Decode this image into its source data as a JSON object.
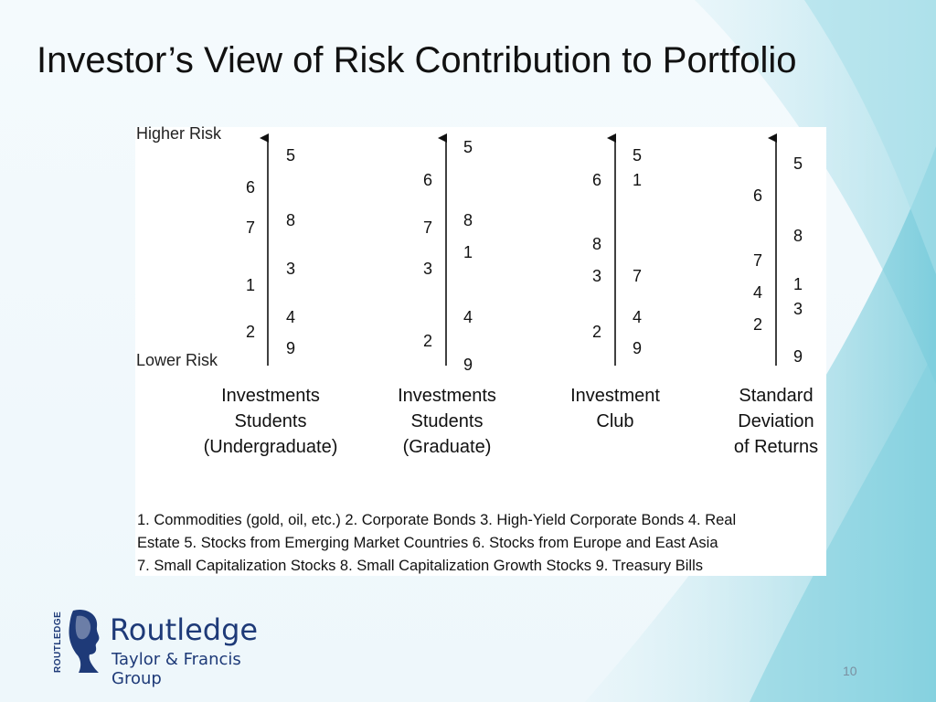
{
  "slide": {
    "title": "Investor’s View of Risk Contribution to Portfolio",
    "page_number": "10"
  },
  "figure": {
    "higher_risk_label": "Higher Risk",
    "lower_risk_label": "Lower Risk",
    "columns": [
      {
        "label_lines": [
          "Investments",
          "Students",
          "(Undergraduate)"
        ],
        "left_numbers": [
          "6",
          "7",
          "1",
          "2"
        ],
        "right_numbers": [
          "5",
          "8",
          "3",
          "4",
          "9"
        ]
      },
      {
        "label_lines": [
          "Investments",
          "Students",
          "(Graduate)"
        ],
        "left_numbers": [
          "6",
          "7",
          "3",
          "2"
        ],
        "right_numbers": [
          "5",
          "8",
          "1",
          "4",
          "9"
        ]
      },
      {
        "label_lines": [
          "Investment",
          "Club"
        ],
        "left_numbers": [
          "6",
          "8",
          "3",
          "2"
        ],
        "right_numbers": [
          "5",
          "1",
          "7",
          "4",
          "9"
        ]
      },
      {
        "label_lines": [
          "Standard",
          "Deviation",
          "of Returns"
        ],
        "left_numbers": [
          "6",
          "7",
          "4",
          "2"
        ],
        "right_numbers": [
          "5",
          "8",
          "1",
          "3",
          "9"
        ]
      }
    ],
    "legend_lines": [
      "1.  Commodities (gold, oil, etc.)   2. Corporate Bonds   3. High-Yield Corporate Bonds   4. Real",
      "Estate   5. Stocks from Emerging Market Countries   6. Stocks from Europe and East Asia",
      "7. Small Capitalization Stocks   8. Small Capitalization Growth Stocks   9. Treasury Bills"
    ]
  },
  "logo": {
    "vertical_text": "ROUTLEDGE",
    "name": "Routledge",
    "subtitle": "Taylor & Francis Group"
  },
  "colors": {
    "logo_blue": "#1e3a78",
    "swirl_teal": "#6cc7d8"
  }
}
